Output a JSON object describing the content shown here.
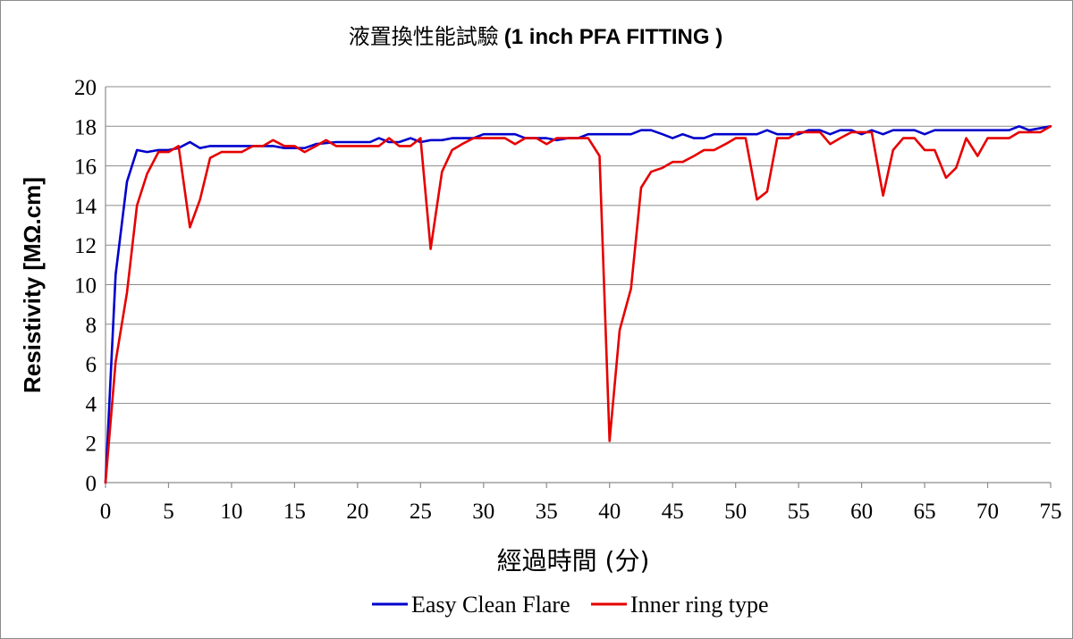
{
  "chart_data": {
    "type": "line",
    "title_main": "液置換性能試驗",
    "title_bold": "(1 inch PFA FITTING )",
    "xlabel": "經過時間 (分)",
    "ylabel": "Resistivity [MΩ.cm]",
    "xlim": [
      0,
      75
    ],
    "ylim": [
      0,
      20
    ],
    "xticks": [
      0,
      5,
      10,
      15,
      20,
      25,
      30,
      35,
      40,
      45,
      50,
      55,
      60,
      65,
      70,
      75
    ],
    "yticks": [
      0,
      2,
      4,
      6,
      8,
      10,
      12,
      14,
      16,
      18,
      20
    ],
    "grid": true,
    "legend_position": "bottom",
    "series": [
      {
        "name": "Easy Clean Flare",
        "color": "#0000cc",
        "points": [
          [
            0,
            0
          ],
          [
            0.8,
            10.5
          ],
          [
            1.7,
            15.2
          ],
          [
            2.5,
            16.8
          ],
          [
            3.3,
            16.7
          ],
          [
            4.2,
            16.8
          ],
          [
            5,
            16.8
          ],
          [
            5.8,
            16.9
          ],
          [
            6.7,
            17.2
          ],
          [
            7.5,
            16.9
          ],
          [
            8.3,
            17.0
          ],
          [
            10,
            17.0
          ],
          [
            11.7,
            17.0
          ],
          [
            13.3,
            17.0
          ],
          [
            14.2,
            16.9
          ],
          [
            15.8,
            16.9
          ],
          [
            16.7,
            17.1
          ],
          [
            18.3,
            17.2
          ],
          [
            20,
            17.2
          ],
          [
            21,
            17.2
          ],
          [
            21.7,
            17.4
          ],
          [
            22.5,
            17.2
          ],
          [
            23.3,
            17.2
          ],
          [
            24.2,
            17.4
          ],
          [
            25,
            17.2
          ],
          [
            25.8,
            17.3
          ],
          [
            26.7,
            17.3
          ],
          [
            27.5,
            17.4
          ],
          [
            29.2,
            17.4
          ],
          [
            30,
            17.6
          ],
          [
            31.7,
            17.6
          ],
          [
            32.5,
            17.6
          ],
          [
            33.3,
            17.4
          ],
          [
            35,
            17.4
          ],
          [
            35.8,
            17.3
          ],
          [
            36.7,
            17.4
          ],
          [
            37.5,
            17.4
          ],
          [
            38.3,
            17.6
          ],
          [
            40,
            17.6
          ],
          [
            41.7,
            17.6
          ],
          [
            42.5,
            17.8
          ],
          [
            43.3,
            17.8
          ],
          [
            44.2,
            17.6
          ],
          [
            45,
            17.4
          ],
          [
            45.8,
            17.6
          ],
          [
            46.7,
            17.4
          ],
          [
            47.5,
            17.4
          ],
          [
            48.3,
            17.6
          ],
          [
            50,
            17.6
          ],
          [
            51.7,
            17.6
          ],
          [
            52.5,
            17.8
          ],
          [
            53.3,
            17.6
          ],
          [
            55,
            17.6
          ],
          [
            55.8,
            17.8
          ],
          [
            56.7,
            17.8
          ],
          [
            57.5,
            17.6
          ],
          [
            58.3,
            17.8
          ],
          [
            59.2,
            17.8
          ],
          [
            60,
            17.6
          ],
          [
            60.8,
            17.8
          ],
          [
            61.7,
            17.6
          ],
          [
            62.5,
            17.8
          ],
          [
            64.2,
            17.8
          ],
          [
            65,
            17.6
          ],
          [
            65.8,
            17.8
          ],
          [
            67.5,
            17.8
          ],
          [
            70,
            17.8
          ],
          [
            71.7,
            17.8
          ],
          [
            72.5,
            18.0
          ],
          [
            73.3,
            17.8
          ],
          [
            75,
            18.0
          ]
        ]
      },
      {
        "name": "Inner ring type",
        "color": "#e60000",
        "points": [
          [
            0,
            0
          ],
          [
            0.8,
            6.1
          ],
          [
            1.7,
            9.6
          ],
          [
            2.5,
            14.0
          ],
          [
            3.3,
            15.6
          ],
          [
            4.2,
            16.7
          ],
          [
            5,
            16.7
          ],
          [
            5.8,
            17.0
          ],
          [
            6.7,
            12.9
          ],
          [
            7.5,
            14.3
          ],
          [
            8.3,
            16.4
          ],
          [
            9.2,
            16.7
          ],
          [
            10,
            16.7
          ],
          [
            10.8,
            16.7
          ],
          [
            11.7,
            17.0
          ],
          [
            12.5,
            17.0
          ],
          [
            13.3,
            17.3
          ],
          [
            14.2,
            17.0
          ],
          [
            15,
            17.0
          ],
          [
            15.8,
            16.7
          ],
          [
            16.7,
            17.0
          ],
          [
            17.5,
            17.3
          ],
          [
            18.3,
            17.0
          ],
          [
            20,
            17.0
          ],
          [
            21.7,
            17.0
          ],
          [
            22.5,
            17.4
          ],
          [
            23.3,
            17.0
          ],
          [
            24.2,
            17.0
          ],
          [
            25,
            17.4
          ],
          [
            25.8,
            11.8
          ],
          [
            26.7,
            15.7
          ],
          [
            27.5,
            16.8
          ],
          [
            28.3,
            17.1
          ],
          [
            29.2,
            17.4
          ],
          [
            30,
            17.4
          ],
          [
            31.7,
            17.4
          ],
          [
            32.5,
            17.1
          ],
          [
            33.3,
            17.4
          ],
          [
            34.2,
            17.4
          ],
          [
            35,
            17.1
          ],
          [
            35.8,
            17.4
          ],
          [
            36.7,
            17.4
          ],
          [
            37.5,
            17.4
          ],
          [
            38.3,
            17.4
          ],
          [
            39.2,
            16.5
          ],
          [
            40,
            2.1
          ],
          [
            40.8,
            7.7
          ],
          [
            41.7,
            9.8
          ],
          [
            42.5,
            14.9
          ],
          [
            43.3,
            15.7
          ],
          [
            44.2,
            15.9
          ],
          [
            45,
            16.2
          ],
          [
            45.8,
            16.2
          ],
          [
            46.7,
            16.5
          ],
          [
            47.5,
            16.8
          ],
          [
            48.3,
            16.8
          ],
          [
            49.2,
            17.1
          ],
          [
            50,
            17.4
          ],
          [
            50.8,
            17.4
          ],
          [
            51.7,
            14.3
          ],
          [
            52.5,
            14.7
          ],
          [
            53.3,
            17.4
          ],
          [
            54.2,
            17.4
          ],
          [
            55,
            17.7
          ],
          [
            55.8,
            17.7
          ],
          [
            56.7,
            17.7
          ],
          [
            57.5,
            17.1
          ],
          [
            58.3,
            17.4
          ],
          [
            59.2,
            17.7
          ],
          [
            60,
            17.7
          ],
          [
            60.8,
            17.7
          ],
          [
            61.7,
            14.5
          ],
          [
            62.5,
            16.8
          ],
          [
            63.3,
            17.4
          ],
          [
            64.2,
            17.4
          ],
          [
            65,
            16.8
          ],
          [
            65.8,
            16.8
          ],
          [
            66.7,
            15.4
          ],
          [
            67.5,
            15.9
          ],
          [
            68.3,
            17.4
          ],
          [
            69.2,
            16.5
          ],
          [
            70,
            17.4
          ],
          [
            70.8,
            17.4
          ],
          [
            71.7,
            17.4
          ],
          [
            72.5,
            17.7
          ],
          [
            73.3,
            17.7
          ],
          [
            74.2,
            17.7
          ],
          [
            75,
            18.0
          ]
        ]
      }
    ]
  }
}
